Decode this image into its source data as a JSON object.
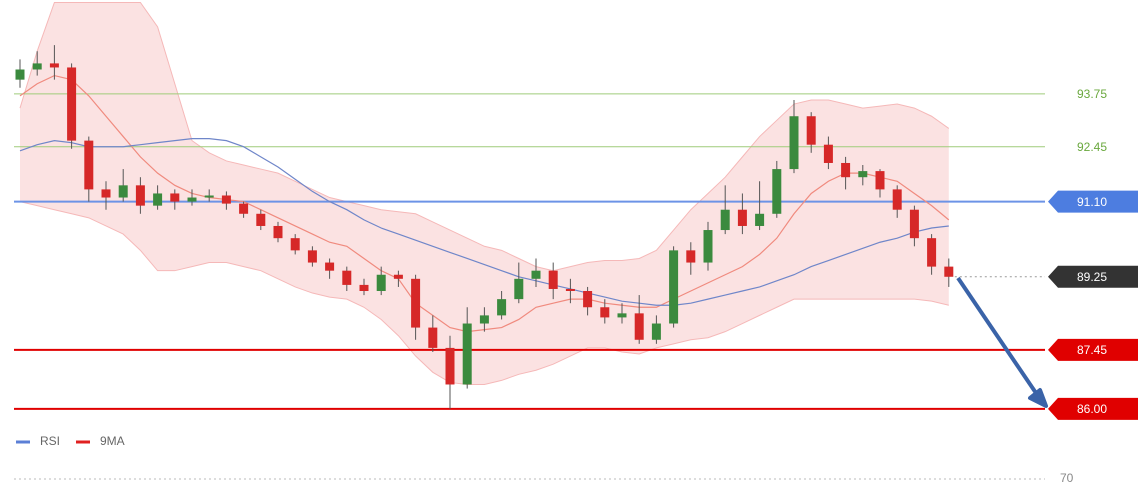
{
  "chart_data": {
    "type": "candlestick",
    "ylim": [
      85.48,
      96.06
    ],
    "open": [
      94.1,
      94.35,
      94.5,
      94.4,
      92.6,
      91.4,
      91.2,
      91.5,
      91.0,
      91.3,
      91.1,
      91.2,
      91.25,
      91.05,
      90.8,
      90.5,
      90.2,
      89.9,
      89.6,
      89.4,
      89.05,
      88.9,
      89.3,
      89.2,
      88.0,
      87.5,
      86.6,
      88.1,
      88.3,
      88.7,
      89.2,
      89.4,
      88.95,
      88.9,
      88.5,
      88.25,
      88.35,
      87.7,
      88.1,
      89.9,
      89.6,
      90.4,
      90.9,
      90.5,
      90.8,
      91.9,
      93.2,
      92.5,
      92.05,
      91.7,
      91.85,
      91.4,
      90.9,
      90.2,
      89.5
    ],
    "high": [
      94.6,
      94.8,
      94.95,
      94.5,
      92.7,
      91.6,
      91.9,
      91.7,
      91.5,
      91.4,
      91.4,
      91.4,
      91.35,
      91.1,
      90.9,
      90.6,
      90.3,
      90.0,
      89.7,
      89.5,
      89.2,
      89.5,
      89.4,
      89.3,
      88.3,
      87.8,
      88.5,
      88.5,
      88.9,
      89.6,
      89.7,
      89.6,
      89.2,
      89.0,
      88.7,
      88.6,
      88.8,
      88.3,
      90.0,
      90.1,
      90.6,
      91.5,
      91.3,
      91.6,
      92.1,
      93.6,
      93.3,
      92.7,
      92.2,
      92.0,
      91.9,
      91.5,
      91.0,
      90.3,
      89.7
    ],
    "low": [
      93.9,
      94.2,
      94.1,
      92.4,
      91.1,
      90.9,
      91.1,
      90.8,
      90.9,
      90.9,
      91.0,
      91.1,
      90.9,
      90.7,
      90.4,
      90.1,
      89.8,
      89.5,
      89.2,
      88.9,
      88.8,
      88.8,
      89.0,
      87.7,
      87.4,
      86.0,
      86.5,
      87.9,
      88.2,
      88.6,
      89.0,
      88.7,
      88.6,
      88.3,
      88.1,
      88.1,
      87.6,
      87.6,
      88.0,
      89.3,
      89.4,
      90.3,
      90.3,
      90.4,
      90.7,
      91.8,
      92.3,
      91.9,
      91.4,
      91.5,
      91.2,
      90.7,
      90.0,
      89.3,
      89.0
    ],
    "close": [
      94.35,
      94.5,
      94.4,
      92.6,
      91.4,
      91.2,
      91.5,
      91.0,
      91.3,
      91.1,
      91.2,
      91.25,
      91.05,
      90.8,
      90.5,
      90.2,
      89.9,
      89.6,
      89.4,
      89.05,
      88.9,
      89.3,
      89.2,
      88.0,
      87.5,
      86.6,
      88.1,
      88.3,
      88.7,
      89.2,
      89.4,
      88.95,
      88.9,
      88.5,
      88.25,
      88.35,
      87.7,
      88.1,
      89.9,
      89.6,
      90.4,
      90.9,
      90.5,
      90.8,
      91.9,
      93.2,
      92.5,
      92.05,
      91.7,
      91.85,
      91.4,
      90.9,
      90.2,
      89.5,
      89.25
    ],
    "up_color": "#3b8a3e",
    "down_color": "#d62828",
    "band_upper": [
      93.4,
      94.8,
      96.0,
      96.0,
      96.0,
      96.0,
      96.0,
      96.0,
      95.4,
      94.0,
      92.6,
      92.3,
      92.1,
      92.0,
      91.9,
      91.8,
      91.6,
      91.4,
      91.2,
      91.1,
      91.0,
      90.9,
      90.85,
      90.8,
      90.6,
      90.4,
      90.2,
      90.0,
      89.9,
      89.7,
      89.5,
      89.4,
      89.5,
      89.6,
      89.65,
      89.65,
      89.7,
      89.9,
      90.4,
      90.9,
      91.3,
      91.7,
      92.2,
      92.7,
      93.1,
      93.5,
      93.6,
      93.6,
      93.5,
      93.4,
      93.45,
      93.5,
      93.4,
      93.2,
      92.9
    ],
    "band_lower": [
      91.1,
      91.0,
      90.9,
      90.8,
      90.7,
      90.5,
      90.3,
      89.9,
      89.4,
      89.4,
      89.5,
      89.6,
      89.6,
      89.5,
      89.4,
      89.2,
      89.0,
      88.85,
      88.75,
      88.7,
      88.5,
      88.2,
      87.8,
      87.3,
      86.9,
      86.65,
      86.6,
      86.6,
      86.7,
      86.85,
      86.95,
      87.1,
      87.3,
      87.5,
      87.5,
      87.4,
      87.35,
      87.5,
      87.6,
      87.7,
      87.75,
      87.9,
      88.1,
      88.3,
      88.5,
      88.7,
      88.7,
      88.7,
      88.7,
      88.7,
      88.7,
      88.7,
      88.7,
      88.65,
      88.55
    ],
    "band_color": "#f9cfcf",
    "series": [
      {
        "name": "9MA",
        "color": "#f08a7e",
        "values": [
          93.7,
          94.0,
          94.2,
          94.1,
          93.7,
          93.2,
          92.7,
          92.2,
          91.8,
          91.5,
          91.3,
          91.2,
          91.15,
          91.1,
          90.9,
          90.7,
          90.5,
          90.3,
          90.1,
          90.0,
          89.7,
          89.4,
          89.2,
          88.6,
          88.3,
          88.0,
          87.9,
          87.95,
          88.0,
          88.2,
          88.5,
          88.6,
          88.7,
          88.7,
          88.6,
          88.55,
          88.5,
          88.5,
          88.7,
          88.9,
          89.1,
          89.3,
          89.5,
          89.8,
          90.2,
          90.8,
          91.3,
          91.6,
          91.8,
          91.8,
          91.7,
          91.6,
          91.3,
          91.0,
          90.65
        ]
      },
      {
        "name": "RSI",
        "color": "#6f86c9",
        "values": [
          92.35,
          92.5,
          92.6,
          92.55,
          92.45,
          92.45,
          92.45,
          92.5,
          92.55,
          92.6,
          92.65,
          92.65,
          92.6,
          92.45,
          92.2,
          91.95,
          91.65,
          91.35,
          91.1,
          90.9,
          90.65,
          90.45,
          90.3,
          90.15,
          90.0,
          89.85,
          89.7,
          89.55,
          89.4,
          89.25,
          89.15,
          89.05,
          88.95,
          88.85,
          88.75,
          88.65,
          88.6,
          88.55,
          88.55,
          88.6,
          88.7,
          88.8,
          88.9,
          89.0,
          89.15,
          89.3,
          89.5,
          89.65,
          89.8,
          89.95,
          90.1,
          90.2,
          90.35,
          90.45,
          90.5
        ]
      }
    ],
    "legend": [
      {
        "name": "RSI",
        "color": "#5b7fd6"
      },
      {
        "name": "9MA",
        "color": "#e02020"
      }
    ],
    "levels": [
      {
        "value": 93.75,
        "color": "#9fcc7a",
        "text_color": "#6aa83e",
        "style": "text"
      },
      {
        "value": 92.45,
        "color": "#9fcc7a",
        "text_color": "#6aa83e",
        "style": "text"
      },
      {
        "value": 91.1,
        "label": "91.10",
        "color": "#6c93e6",
        "text_color": "#ffffff",
        "box": "#4d7de0",
        "style": "box"
      },
      {
        "value": 89.25,
        "color": "#999999",
        "text_color": "#ffffff",
        "box": "#333333",
        "style": "dotted"
      },
      {
        "value": 87.45,
        "color": "#e00000",
        "text_color": "#ffffff",
        "box": "#e00000",
        "style": "box"
      },
      {
        "value": 86,
        "label": "86.00",
        "color": "#e00000",
        "text_color": "#ffffff",
        "box": "#e00000",
        "style": "box"
      }
    ],
    "rsi_yticks": [
      70
    ]
  }
}
